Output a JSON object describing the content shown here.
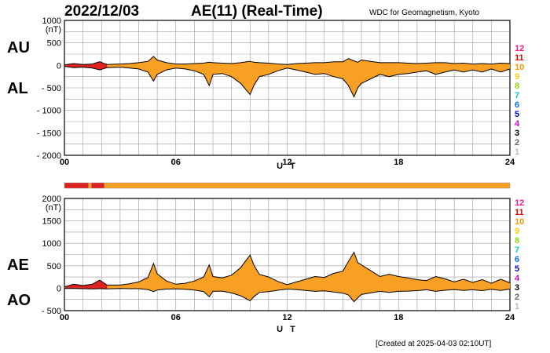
{
  "header": {
    "date": "2022/12/03",
    "title": "AE(11) (Real-Time)",
    "source": "WDC for Geomagnetism, Kyoto"
  },
  "footer": {
    "created": "[Created at 2025-04-03 02:10UT]"
  },
  "levels": {
    "labels": [
      "12",
      "11",
      "10",
      "9",
      "8",
      "7",
      "6",
      "5",
      "4",
      "3",
      "2",
      "1"
    ],
    "colors": [
      "#ff1493",
      "#dd0000",
      "#ff9900",
      "#ffcc00",
      "#88dd00",
      "#00cccc",
      "#0070ff",
      "#0000cc",
      "#cc00cc",
      "#000000",
      "#666666",
      "#bbbbbb"
    ]
  },
  "colors": {
    "fill": "#f7a023",
    "early_fill": "#dd2222",
    "line": "#000000",
    "grid": "#999999"
  },
  "status_bar": {
    "segments": [
      {
        "from": 0,
        "to": 1.3,
        "color": "#dd2222"
      },
      {
        "from": 1.3,
        "to": 1.45,
        "color": "#f7a023"
      },
      {
        "from": 1.45,
        "to": 2.15,
        "color": "#dd2222"
      },
      {
        "from": 2.15,
        "to": 24,
        "color": "#f7a023"
      }
    ]
  },
  "chart_data": [
    {
      "type": "area",
      "panel": "AU/AL",
      "side_labels": [
        "AU",
        "AL"
      ],
      "y_unit": "(nT)",
      "y_ticks": [
        "1000",
        "500",
        "0",
        "- 500",
        "- 1000",
        "- 1500",
        "- 2000"
      ],
      "x_ticks": [
        "00",
        "06",
        "12",
        "18",
        "24"
      ],
      "xlabel": "U T",
      "xlim": [
        0,
        24
      ],
      "ylim": [
        -2000,
        1000
      ],
      "x": [
        0,
        0.5,
        1,
        1.5,
        1.9,
        2.3,
        3,
        3.5,
        4,
        4.5,
        4.8,
        5,
        5.5,
        6,
        6.5,
        7,
        7.5,
        7.8,
        8,
        8.5,
        9,
        9.5,
        9.8,
        10,
        10.2,
        10.5,
        11,
        11.5,
        12,
        12.5,
        13,
        13.5,
        14,
        14.5,
        15,
        15.3,
        15.6,
        15.8,
        16,
        16.5,
        17,
        17.5,
        18,
        18.5,
        19,
        19.5,
        20,
        20.5,
        21,
        21.5,
        22,
        22.5,
        23,
        23.5,
        24
      ],
      "series": [
        {
          "name": "AU",
          "values": [
            10,
            40,
            20,
            30,
            80,
            20,
            30,
            40,
            60,
            90,
            200,
            120,
            60,
            30,
            30,
            40,
            50,
            70,
            60,
            50,
            40,
            60,
            80,
            90,
            70,
            60,
            50,
            30,
            20,
            40,
            50,
            60,
            60,
            80,
            80,
            150,
            100,
            70,
            120,
            90,
            60,
            60,
            60,
            50,
            40,
            50,
            60,
            60,
            40,
            50,
            30,
            40,
            30,
            50,
            40
          ]
        },
        {
          "name": "AL",
          "values": [
            -20,
            -50,
            -40,
            -60,
            -100,
            -50,
            -40,
            -60,
            -80,
            -150,
            -350,
            -200,
            -100,
            -60,
            -80,
            -120,
            -200,
            -450,
            -200,
            -180,
            -250,
            -400,
            -550,
            -650,
            -450,
            -250,
            -200,
            -120,
            -60,
            -100,
            -150,
            -200,
            -180,
            -250,
            -300,
            -450,
            -700,
            -500,
            -400,
            -300,
            -200,
            -250,
            -200,
            -180,
            -150,
            -120,
            -200,
            -150,
            -100,
            -150,
            -100,
            -150,
            -80,
            -150,
            -80
          ]
        }
      ]
    },
    {
      "type": "area",
      "panel": "AE/AO",
      "side_labels": [
        "AE",
        "AO"
      ],
      "y_unit": "(nT)",
      "y_ticks": [
        "2000",
        "1500",
        "1000",
        "500",
        "0",
        "- 500"
      ],
      "x_ticks": [
        "00",
        "06",
        "12",
        "18",
        "24"
      ],
      "xlabel": "U T",
      "xlim": [
        0,
        24
      ],
      "ylim": [
        -500,
        2000
      ],
      "x": [
        0,
        0.5,
        1,
        1.5,
        1.9,
        2.3,
        3,
        3.5,
        4,
        4.5,
        4.8,
        5,
        5.5,
        6,
        6.5,
        7,
        7.5,
        7.8,
        8,
        8.5,
        9,
        9.5,
        9.8,
        10,
        10.2,
        10.5,
        11,
        11.5,
        12,
        12.5,
        13,
        13.5,
        14,
        14.5,
        15,
        15.3,
        15.6,
        15.8,
        16,
        16.5,
        17,
        17.5,
        18,
        18.5,
        19,
        19.5,
        20,
        20.5,
        21,
        21.5,
        22,
        22.5,
        23,
        23.5,
        24
      ],
      "series": [
        {
          "name": "AE",
          "values": [
            30,
            90,
            60,
            90,
            180,
            70,
            70,
            100,
            140,
            240,
            550,
            320,
            160,
            90,
            110,
            160,
            250,
            520,
            260,
            230,
            290,
            460,
            630,
            740,
            520,
            310,
            250,
            150,
            80,
            140,
            200,
            260,
            240,
            330,
            380,
            600,
            800,
            570,
            520,
            390,
            260,
            310,
            260,
            230,
            190,
            170,
            260,
            210,
            140,
            200,
            130,
            190,
            110,
            200,
            120
          ]
        },
        {
          "name": "AO",
          "values": [
            -5,
            -5,
            -10,
            -15,
            -10,
            -15,
            -5,
            -10,
            -10,
            -30,
            -75,
            -40,
            -20,
            -15,
            -25,
            -40,
            -75,
            -190,
            -70,
            -65,
            -105,
            -170,
            -235,
            -280,
            -190,
            -95,
            -75,
            -45,
            -20,
            -30,
            -50,
            -70,
            -60,
            -85,
            -110,
            -150,
            -300,
            -215,
            -140,
            -105,
            -70,
            -95,
            -70,
            -65,
            -55,
            -35,
            -70,
            -45,
            -30,
            -50,
            -35,
            -55,
            -25,
            -50,
            -20
          ]
        }
      ]
    }
  ]
}
